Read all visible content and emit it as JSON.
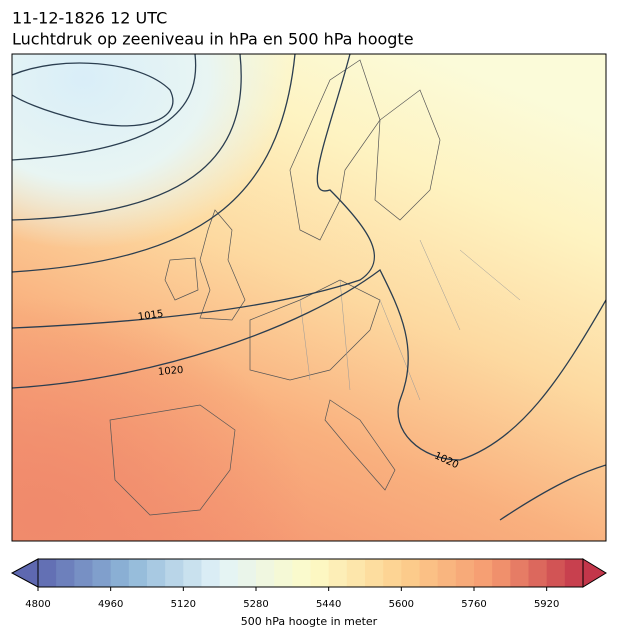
{
  "title": "11-12-1826 12 UTC",
  "subtitle": "Luchtdruk op zeeniveau in hPa en 500 hPa hoogte",
  "contour_labels": [
    "1015",
    "1020",
    "1020"
  ],
  "colorbar": {
    "lim": [
      4800,
      6000
    ],
    "step": 40,
    "ticks": [
      4800,
      4960,
      5120,
      5280,
      5440,
      5600,
      5760,
      5920
    ],
    "label": "500 hPa hoogte in meter",
    "color_stops": [
      "#5e68b0",
      "#8fb7d8",
      "#e2f3f8",
      "#fdfbc8",
      "#fdd08e",
      "#f59a70",
      "#c3364a"
    ]
  }
}
